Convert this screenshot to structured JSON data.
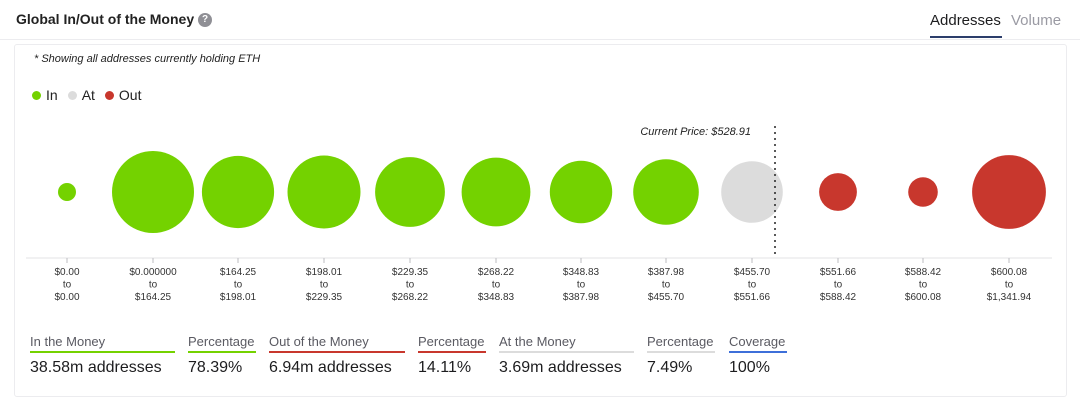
{
  "header": {
    "title": "Global In/Out of the Money",
    "help_icon": "question-circle-icon",
    "tabs": [
      {
        "label": "Addresses",
        "active": true
      },
      {
        "label": "Volume",
        "active": false
      }
    ]
  },
  "note": "* Showing all addresses currently holding ETH",
  "legend": [
    {
      "label": "In",
      "color": "#74d200"
    },
    {
      "label": "At",
      "color": "#dcdcdc"
    },
    {
      "label": "Out",
      "color": "#c8372d"
    }
  ],
  "chart_data": {
    "type": "bubble",
    "title": "Global In/Out of the Money",
    "measure": "addresses",
    "colors": {
      "in": "#74d200",
      "at": "#dcdcdc",
      "out": "#c8372d"
    },
    "current_price_label": "Current Price: $528.91",
    "current_price": 528.91,
    "buckets": [
      {
        "from": "$0.00",
        "to": "$0.00",
        "status": "in",
        "relative_size": 0.22
      },
      {
        "from": "$0.000000",
        "to": "$164.25",
        "status": "in",
        "relative_size": 1.0
      },
      {
        "from": "$164.25",
        "to": "$198.01",
        "status": "in",
        "relative_size": 0.88
      },
      {
        "from": "$198.01",
        "to": "$229.35",
        "status": "in",
        "relative_size": 0.89
      },
      {
        "from": "$229.35",
        "to": "$268.22",
        "status": "in",
        "relative_size": 0.85
      },
      {
        "from": "$268.22",
        "to": "$348.83",
        "status": "in",
        "relative_size": 0.84
      },
      {
        "from": "$348.83",
        "to": "$387.98",
        "status": "in",
        "relative_size": 0.76
      },
      {
        "from": "$387.98",
        "to": "$455.70",
        "status": "in",
        "relative_size": 0.8
      },
      {
        "from": "$455.70",
        "to": "$551.66",
        "status": "at",
        "relative_size": 0.75
      },
      {
        "from": "$551.66",
        "to": "$588.42",
        "status": "out",
        "relative_size": 0.46
      },
      {
        "from": "$588.42",
        "to": "$600.08",
        "status": "out",
        "relative_size": 0.36
      },
      {
        "from": "$600.08",
        "to": "$1,341.94",
        "status": "out",
        "relative_size": 0.9
      }
    ],
    "range_joiner": "to"
  },
  "summary": [
    {
      "label": "In the Money",
      "value": "38.58m addresses",
      "color": "#74d200"
    },
    {
      "label": "Percentage",
      "value": "78.39%",
      "color": "#74d200"
    },
    {
      "label": "Out of the Money",
      "value": "6.94m addresses",
      "color": "#c8372d"
    },
    {
      "label": "Percentage",
      "value": "14.11%",
      "color": "#c8372d"
    },
    {
      "label": "At the Money",
      "value": "3.69m addresses",
      "color": "#dcdcdc"
    },
    {
      "label": "Percentage",
      "value": "7.49%",
      "color": "#dcdcdc"
    },
    {
      "label": "Coverage",
      "value": "100%",
      "color": "#3d6fd9"
    }
  ]
}
